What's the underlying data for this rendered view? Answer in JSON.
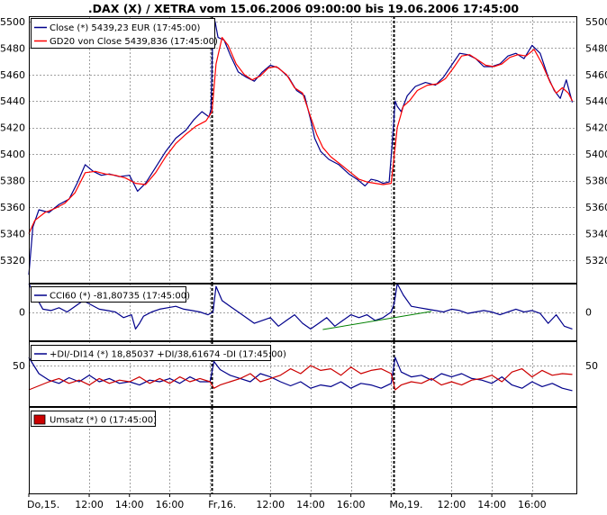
{
  "chart_data": {
    "type": "line",
    "title": ".DAX (X) / XETRA vom 15.06.2006 09:00:00 bis 19.06.2006 17:45:00",
    "xlabel": "",
    "ylabel": "",
    "x_ticks": [
      "Do,15.",
      "12:00",
      "14:00",
      "16:00",
      "Fr,16.",
      "12:00",
      "14:00",
      "16:00",
      "Mo,19.",
      "12:00",
      "14:00",
      "16:00"
    ],
    "x_ticks_idx": [
      0,
      3,
      5,
      7,
      9,
      12,
      14,
      16,
      18,
      21,
      23,
      25
    ],
    "day_separators_idx": [
      9.1,
      18.1
    ],
    "x_range": [
      0,
      27.2
    ],
    "colors": {
      "close": "#00008b",
      "gd20": "#ff0000",
      "cci": "#00008b",
      "cci_trend": "#008000",
      "di_plus": "#00008b",
      "di_minus": "#cc0000",
      "umsatz": "#cc0000",
      "grid": "#a0a0a0",
      "frame": "#000000"
    },
    "panels": [
      {
        "id": "price",
        "ylim": [
          5303,
          5504
        ],
        "y_ticks": [
          5320,
          5340,
          5360,
          5380,
          5400,
          5420,
          5440,
          5460,
          5480,
          5500
        ],
        "y_ticks_left": [
          5320,
          5340,
          5360,
          5380,
          5400,
          5420,
          5440,
          5460,
          5480,
          5500
        ],
        "y_ticks_right": [
          5320,
          5340,
          5360,
          5380,
          5400,
          5420,
          5440,
          5460,
          5480,
          5500
        ],
        "legend": [
          "Close (*) 5439,23 EUR (17:45:00)",
          "GD20 von Close 5439,836 (17:45:00)"
        ],
        "series": [
          {
            "name": "Close",
            "x": [
              0,
              0.2,
              0.5,
              1.0,
              1.5,
              2.0,
              2.4,
              2.8,
              3.2,
              3.6,
              4.0,
              4.5,
              5.0,
              5.4,
              5.8,
              6.3,
              6.8,
              7.3,
              7.8,
              8.2,
              8.6,
              8.95,
              9.05,
              9.15,
              9.25,
              9.4,
              9.7,
              10.0,
              10.4,
              10.8,
              11.2,
              11.6,
              12.0,
              12.4,
              12.9,
              13.3,
              13.7,
              14.0,
              14.2,
              14.5,
              14.9,
              15.4,
              15.9,
              16.3,
              16.7,
              17.0,
              17.3,
              17.6,
              17.9,
              18.05,
              18.2,
              18.3,
              18.5,
              18.8,
              19.2,
              19.7,
              20.2,
              20.6,
              21.0,
              21.4,
              21.8,
              22.2,
              22.6,
              23.0,
              23.4,
              23.8,
              24.2,
              24.6,
              25.0,
              25.4,
              25.8,
              26.1,
              26.4,
              26.7,
              27.0
            ],
            "values": [
              5309,
              5345,
              5358,
              5356,
              5362,
              5366,
              5378,
              5392,
              5387,
              5384,
              5385,
              5383,
              5384,
              5372,
              5378,
              5390,
              5402,
              5412,
              5418,
              5426,
              5432,
              5428,
              5434,
              5496,
              5500,
              5488,
              5486,
              5475,
              5462,
              5458,
              5455,
              5462,
              5467,
              5465,
              5458,
              5448,
              5444,
              5426,
              5412,
              5402,
              5396,
              5392,
              5385,
              5381,
              5376,
              5381,
              5380,
              5378,
              5379,
              5408,
              5440,
              5436,
              5432,
              5444,
              5451,
              5454,
              5452,
              5458,
              5467,
              5476,
              5475,
              5472,
              5466,
              5466,
              5468,
              5474,
              5476,
              5472,
              5482,
              5476,
              5458,
              5448,
              5442,
              5456,
              5439
            ]
          },
          {
            "name": "GD20",
            "x": [
              0,
              0.3,
              0.8,
              1.3,
              1.8,
              2.3,
              2.8,
              3.3,
              3.8,
              4.3,
              4.8,
              5.3,
              5.8,
              6.3,
              6.8,
              7.3,
              7.8,
              8.3,
              8.8,
              9.1,
              9.3,
              9.6,
              9.9,
              10.3,
              10.7,
              11.1,
              11.5,
              11.9,
              12.3,
              12.8,
              13.2,
              13.6,
              14.0,
              14.3,
              14.6,
              15.0,
              15.5,
              16.0,
              16.4,
              16.8,
              17.2,
              17.6,
              18.0,
              18.3,
              18.6,
              18.9,
              19.3,
              19.8,
              20.3,
              20.7,
              21.1,
              21.5,
              21.9,
              22.3,
              22.7,
              23.1,
              23.5,
              23.9,
              24.3,
              24.7,
              25.1,
              25.5,
              25.9,
              26.2,
              26.5,
              26.8,
              27.0
            ],
            "values": [
              5340,
              5350,
              5356,
              5359,
              5363,
              5371,
              5386,
              5387,
              5385,
              5384,
              5382,
              5378,
              5377,
              5386,
              5398,
              5408,
              5415,
              5421,
              5425,
              5432,
              5468,
              5488,
              5482,
              5468,
              5460,
              5456,
              5459,
              5465,
              5466,
              5460,
              5450,
              5446,
              5428,
              5415,
              5405,
              5398,
              5392,
              5386,
              5381,
              5379,
              5378,
              5377,
              5378,
              5420,
              5436,
              5440,
              5448,
              5452,
              5453,
              5457,
              5465,
              5474,
              5475,
              5471,
              5467,
              5466,
              5468,
              5473,
              5475,
              5474,
              5479,
              5468,
              5454,
              5446,
              5450,
              5446,
              5440
            ]
          }
        ]
      },
      {
        "id": "cci",
        "ylim": [
          -100,
          100
        ],
        "y_ticks_left": [
          0
        ],
        "y_ticks_right": [
          0
        ],
        "legend": [
          "CCI60 (*) -81,80735 (17:45:00)"
        ],
        "series": [
          {
            "name": "CCI60",
            "x": [
              0,
              0.3,
              0.7,
              1.1,
              1.5,
              1.9,
              2.3,
              2.7,
              3.1,
              3.5,
              3.9,
              4.3,
              4.7,
              5.1,
              5.3,
              5.5,
              5.7,
              6.1,
              6.5,
              6.9,
              7.3,
              7.7,
              8.1,
              8.5,
              8.9,
              9.15,
              9.3,
              9.6,
              10.0,
              10.4,
              10.8,
              11.2,
              11.6,
              12.0,
              12.4,
              12.8,
              13.2,
              13.6,
              14.0,
              14.4,
              14.8,
              15.2,
              15.6,
              16.0,
              16.4,
              16.8,
              17.2,
              17.6,
              18.0,
              18.15,
              18.3,
              18.6,
              19.0,
              19.4,
              19.8,
              20.2,
              20.6,
              21.0,
              21.4,
              21.8,
              22.2,
              22.6,
              23.0,
              23.4,
              23.8,
              24.2,
              24.6,
              25.0,
              25.4,
              25.8,
              26.2,
              26.6,
              27.0
            ],
            "values": [
              100,
              60,
              10,
              5,
              15,
              0,
              20,
              40,
              25,
              10,
              5,
              0,
              -20,
              -10,
              -60,
              -40,
              -15,
              0,
              10,
              15,
              20,
              10,
              5,
              0,
              -10,
              0,
              90,
              40,
              20,
              0,
              -20,
              -40,
              -30,
              -20,
              -50,
              -30,
              -10,
              -40,
              -60,
              -40,
              -20,
              -50,
              -30,
              -10,
              -20,
              -10,
              -30,
              -20,
              0,
              30,
              100,
              60,
              20,
              15,
              10,
              5,
              0,
              10,
              5,
              -5,
              0,
              5,
              0,
              -10,
              0,
              10,
              0,
              5,
              -5,
              -40,
              -10,
              -50,
              -60
            ]
          },
          {
            "name": "Trend",
            "x": [
              14.6,
              20.0
            ],
            "values": [
              -62,
              2
            ]
          }
        ]
      },
      {
        "id": "dmi",
        "ylim": [
          0,
          80
        ],
        "y_ticks_left": [
          50
        ],
        "y_ticks_right": [
          50
        ],
        "legend": [
          "+DI/-DI14 (*) 18,85037 +DI/38,61674 -DI (17:45:00)"
        ],
        "series": [
          {
            "name": "+DI",
            "x": [
              0,
              0.5,
              1.0,
              1.5,
              2.0,
              2.5,
              3.0,
              3.5,
              4.0,
              4.5,
              5.0,
              5.5,
              6.0,
              6.5,
              7.0,
              7.5,
              8.0,
              8.5,
              9.0,
              9.2,
              9.5,
              10.0,
              10.5,
              11.0,
              11.5,
              12.0,
              12.5,
              13.0,
              13.5,
              14.0,
              14.5,
              15.0,
              15.5,
              16.0,
              16.5,
              17.0,
              17.5,
              18.0,
              18.2,
              18.5,
              19.0,
              19.5,
              20.0,
              20.5,
              21.0,
              21.5,
              22.0,
              22.5,
              23.0,
              23.5,
              24.0,
              24.5,
              25.0,
              25.5,
              26.0,
              26.5,
              27.0
            ],
            "values": [
              60,
              40,
              32,
              28,
              35,
              30,
              38,
              30,
              34,
              28,
              30,
              26,
              32,
              30,
              34,
              28,
              36,
              30,
              30,
              55,
              45,
              38,
              34,
              30,
              40,
              36,
              30,
              25,
              30,
              22,
              26,
              24,
              30,
              22,
              28,
              26,
              22,
              28,
              60,
              42,
              36,
              38,
              32,
              40,
              36,
              40,
              34,
              32,
              28,
              36,
              26,
              22,
              30,
              24,
              28,
              22,
              19
            ]
          },
          {
            "name": "-DI",
            "x": [
              0,
              0.5,
              1.0,
              1.5,
              2.0,
              2.5,
              3.0,
              3.5,
              4.0,
              4.5,
              5.0,
              5.5,
              6.0,
              6.5,
              7.0,
              7.5,
              8.0,
              8.5,
              9.0,
              9.2,
              9.5,
              10.0,
              10.5,
              11.0,
              11.5,
              12.0,
              12.5,
              13.0,
              13.5,
              14.0,
              14.5,
              15.0,
              15.5,
              16.0,
              16.5,
              17.0,
              17.5,
              18.0,
              18.2,
              18.5,
              19.0,
              19.5,
              20.0,
              20.5,
              21.0,
              21.5,
              22.0,
              22.5,
              23.0,
              23.5,
              24.0,
              24.5,
              25.0,
              25.5,
              26.0,
              26.5,
              27.0
            ],
            "values": [
              20,
              25,
              30,
              34,
              28,
              32,
              26,
              34,
              28,
              32,
              30,
              36,
              28,
              34,
              28,
              36,
              30,
              34,
              30,
              22,
              26,
              30,
              34,
              40,
              30,
              34,
              38,
              46,
              40,
              50,
              44,
              46,
              38,
              48,
              40,
              44,
              46,
              40,
              20,
              26,
              30,
              28,
              34,
              26,
              30,
              26,
              32,
              34,
              38,
              30,
              42,
              46,
              36,
              44,
              38,
              40,
              39
            ]
          }
        ]
      },
      {
        "id": "umsatz",
        "ylim": [
          0,
          1
        ],
        "y_ticks_left": [],
        "y_ticks_right": [],
        "legend": [
          "Umsatz (*) 0 (17:45:00)"
        ],
        "series": []
      }
    ]
  }
}
